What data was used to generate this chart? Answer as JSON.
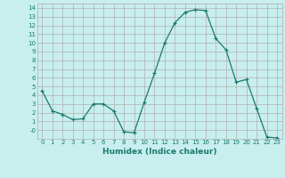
{
  "x": [
    0,
    1,
    2,
    3,
    4,
    5,
    6,
    7,
    8,
    9,
    10,
    11,
    12,
    13,
    14,
    15,
    16,
    17,
    18,
    19,
    20,
    21,
    22,
    23
  ],
  "y": [
    4.5,
    2.2,
    1.8,
    1.2,
    1.3,
    3.0,
    3.0,
    2.2,
    -0.2,
    -0.3,
    3.2,
    6.5,
    10.0,
    12.3,
    13.5,
    13.8,
    13.7,
    10.5,
    9.2,
    5.5,
    5.8,
    2.5,
    -0.8,
    -0.9
  ],
  "xlabel": "Humidex (Indice chaleur)",
  "ylim": [
    -1.0,
    14.5
  ],
  "xlim": [
    -0.5,
    23.5
  ],
  "line_color": "#1a7a6e",
  "marker": "+",
  "bg_color": "#c8eeee",
  "grid_color": "#b0b0b0",
  "yticks": [
    0,
    1,
    2,
    3,
    4,
    5,
    6,
    7,
    8,
    9,
    10,
    11,
    12,
    13,
    14
  ],
  "ytick_labels": [
    "-0",
    "1",
    "2",
    "3",
    "4",
    "5",
    "6",
    "7",
    "8",
    "9",
    "10",
    "11",
    "12",
    "13",
    "14"
  ],
  "xticks": [
    0,
    1,
    2,
    3,
    4,
    5,
    6,
    7,
    8,
    9,
    10,
    11,
    12,
    13,
    14,
    15,
    16,
    17,
    18,
    19,
    20,
    21,
    22,
    23
  ],
  "tick_color": "#1a7a6e",
  "xlabel_fontsize": 6.5,
  "tick_fontsize": 5.0
}
